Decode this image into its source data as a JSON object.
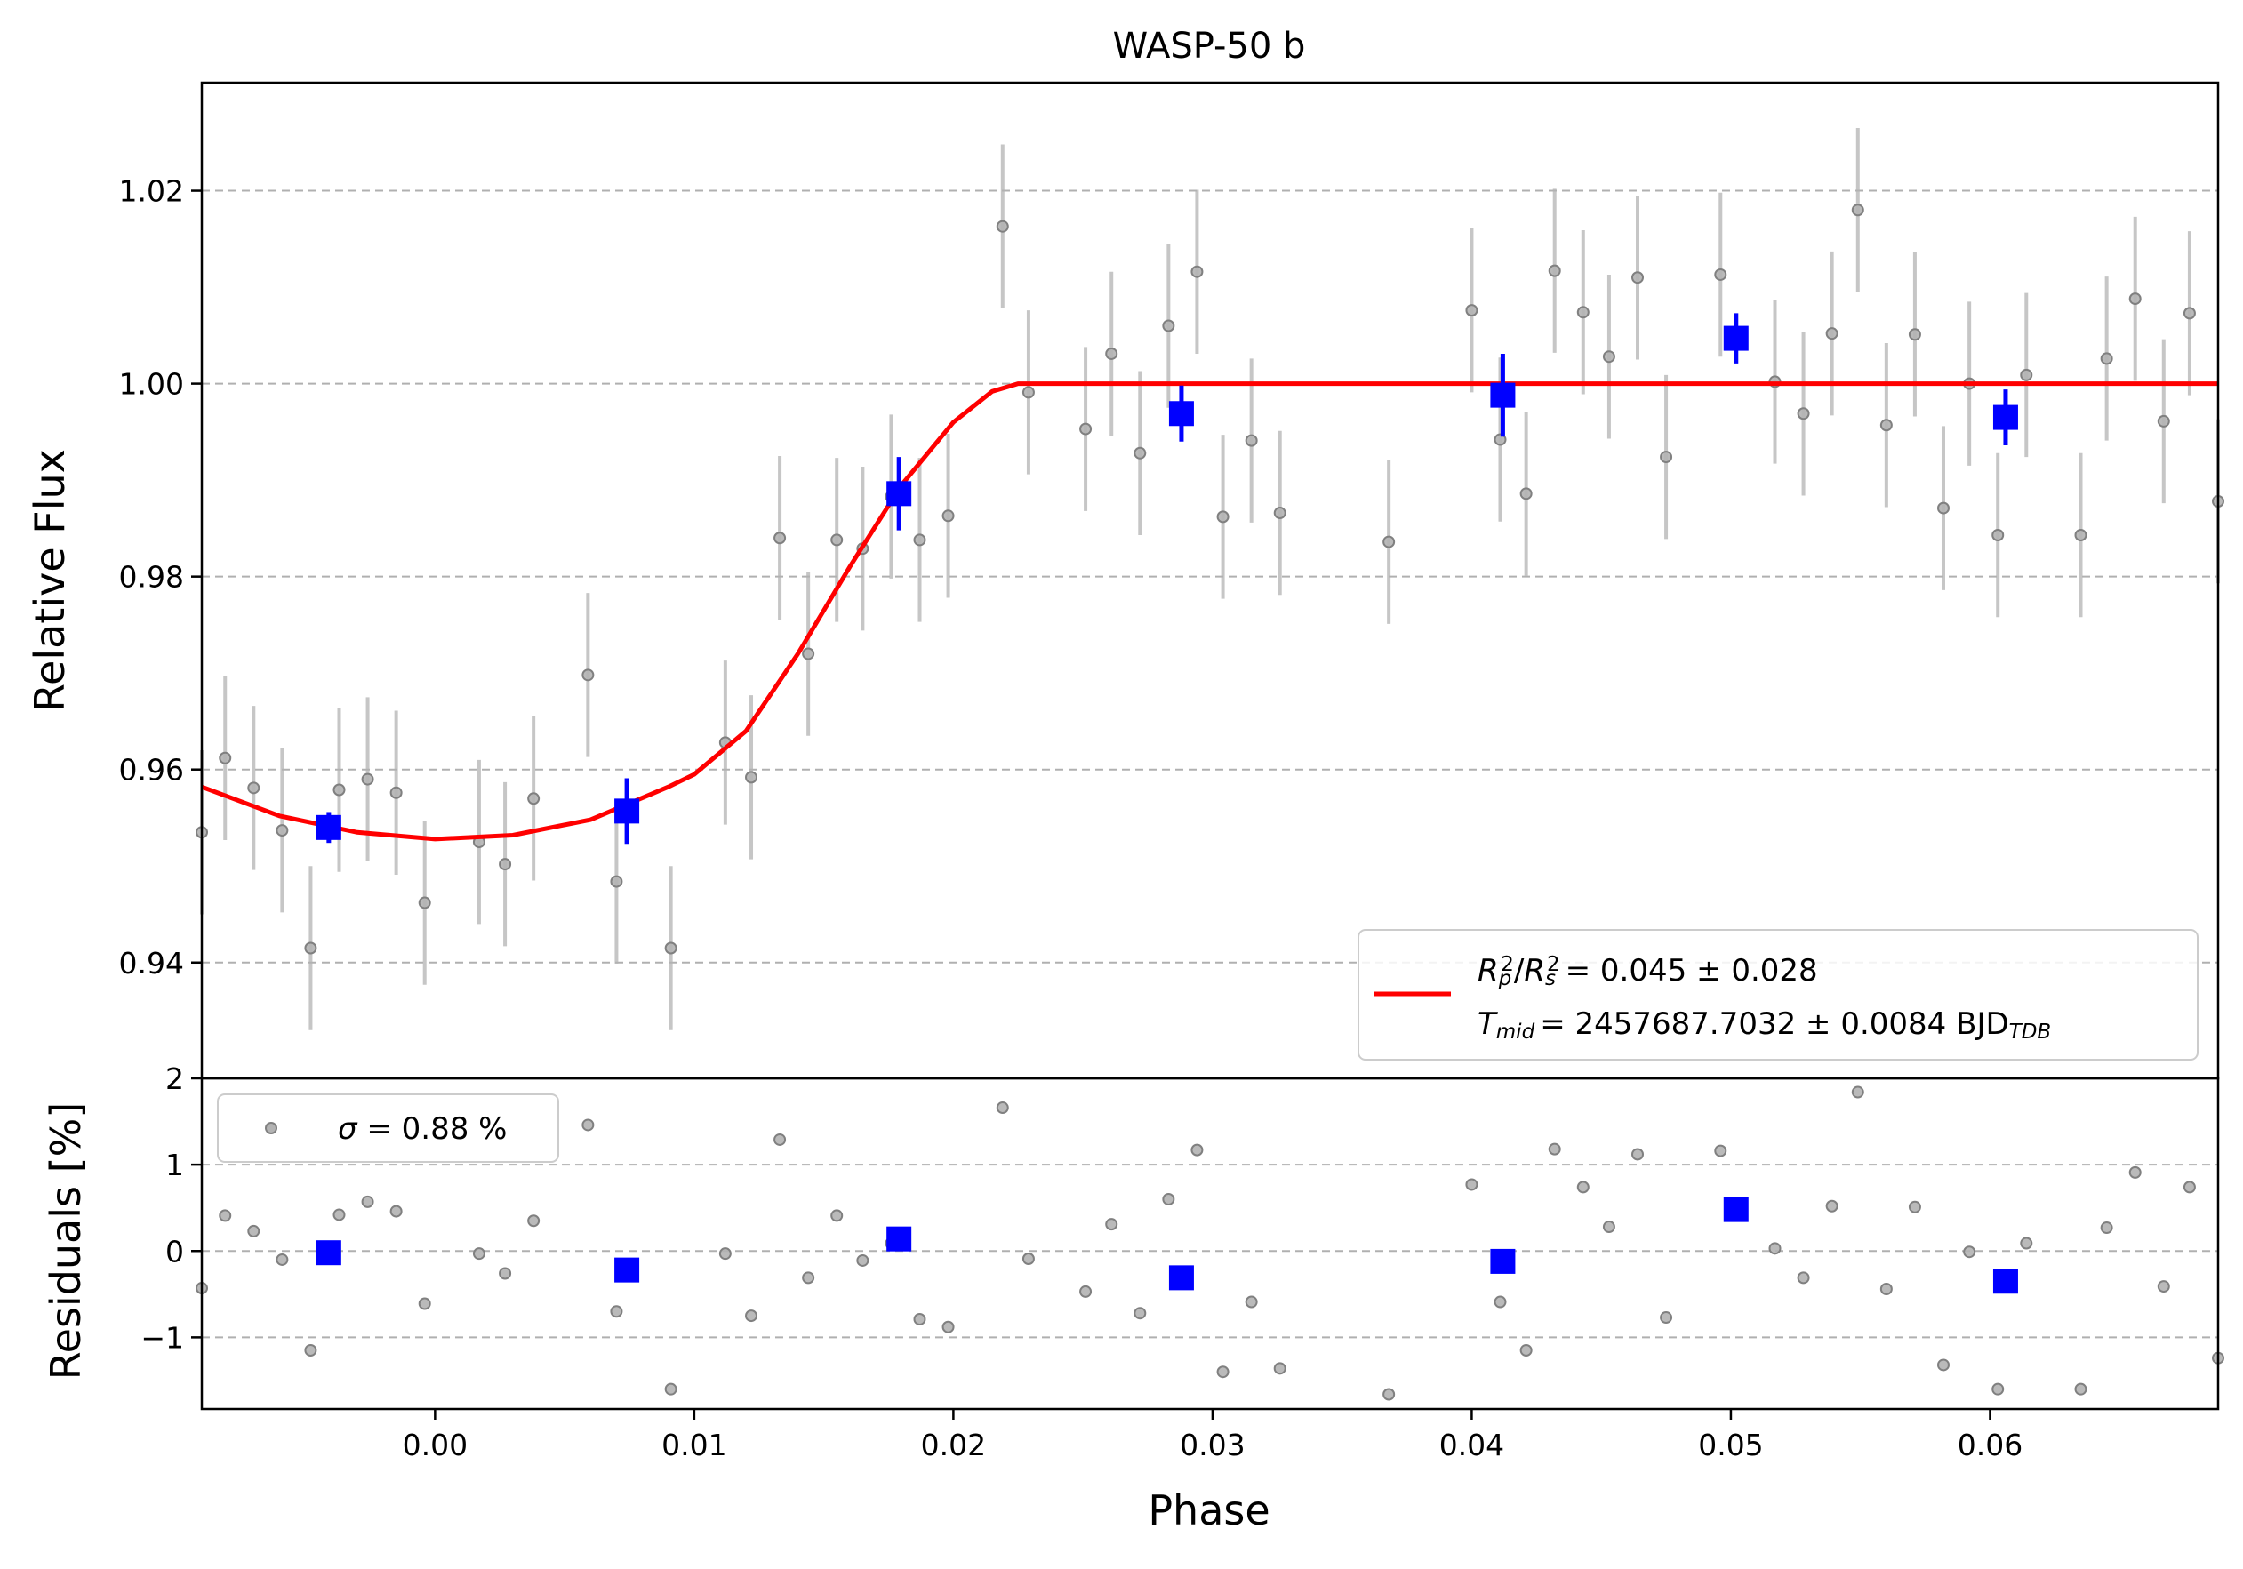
{
  "chart_data": {
    "type": "scatter",
    "title": "WASP-50 b",
    "xlabel": "Phase",
    "x_ticks": [
      "0.00",
      "0.01",
      "0.02",
      "0.03",
      "0.04",
      "0.05",
      "0.06"
    ],
    "xlim": [
      -0.009,
      0.0688
    ],
    "grid": "horizontal dashed",
    "colors": {
      "raw": "#808080",
      "binned": "#0000ff",
      "model": "#ff0000"
    },
    "top_panel": {
      "ylabel": "Relative Flux",
      "y_ticks": [
        "0.94",
        "0.96",
        "0.98",
        "1.00",
        "1.02"
      ],
      "ylim": [
        0.928,
        1.0312
      ],
      "legend": {
        "position": "bottom-right",
        "entries": [
          {
            "series": "model",
            "line1": {
              "lhs": "R²p/R²s",
              "rhs": "= 0.045 ± 0.028"
            },
            "line2": {
              "lhs": "Tmid",
              "rhs": "= 2457687.7032 ± 0.0084 BJD",
              "sub": "TDB"
            }
          }
        ]
      },
      "series": [
        {
          "kind": "raw-data",
          "err": 0.0085,
          "points": [
            [
              -0.009,
              0.9535
            ],
            [
              -0.0081,
              0.9612
            ],
            [
              -0.007,
              0.9581
            ],
            [
              -0.0059,
              0.9537
            ],
            [
              -0.0048,
              0.9415
            ],
            [
              -0.0037,
              0.9579
            ],
            [
              -0.0026,
              0.959
            ],
            [
              -0.0015,
              0.9576
            ],
            [
              -0.0004,
              0.9462
            ],
            [
              0.0017,
              0.9525
            ],
            [
              0.0027,
              0.9502
            ],
            [
              0.0038,
              0.957
            ],
            [
              0.0059,
              0.9698
            ],
            [
              0.007,
              0.9484
            ],
            [
              0.0091,
              0.9415
            ],
            [
              0.0112,
              0.9628
            ],
            [
              0.0122,
              0.9592
            ],
            [
              0.0133,
              0.984
            ],
            [
              0.0144,
              0.972
            ],
            [
              0.0155,
              0.9838
            ],
            [
              0.0165,
              0.9829
            ],
            [
              0.0176,
              0.9883
            ],
            [
              0.0187,
              0.9838
            ],
            [
              0.0198,
              0.9863
            ],
            [
              0.0219,
              1.0163
            ],
            [
              0.0229,
              0.9991
            ],
            [
              0.0251,
              0.9953
            ],
            [
              0.0261,
              1.0031
            ],
            [
              0.0272,
              0.9928
            ],
            [
              0.0283,
              1.006
            ],
            [
              0.0294,
              1.0116
            ],
            [
              0.0304,
              0.9862
            ],
            [
              0.0315,
              0.9941
            ],
            [
              0.0326,
              0.9866
            ],
            [
              0.0368,
              0.9836
            ],
            [
              0.04,
              1.0076
            ],
            [
              0.0411,
              0.9942
            ],
            [
              0.0421,
              0.9886
            ],
            [
              0.0432,
              1.0117
            ],
            [
              0.0443,
              1.0074
            ],
            [
              0.0453,
              1.0028
            ],
            [
              0.0464,
              1.011
            ],
            [
              0.0475,
              0.9924
            ],
            [
              0.0496,
              1.0113
            ],
            [
              0.0517,
              1.0002
            ],
            [
              0.0528,
              0.9969
            ],
            [
              0.0539,
              1.0052
            ],
            [
              0.0549,
              1.018
            ],
            [
              0.056,
              0.9957
            ],
            [
              0.0571,
              1.0051
            ],
            [
              0.0582,
              0.9871
            ],
            [
              0.0592,
              1.0
            ],
            [
              0.0603,
              0.9843
            ],
            [
              0.0614,
              1.0009
            ],
            [
              0.0635,
              0.9843
            ],
            [
              0.0645,
              1.0026
            ],
            [
              0.0656,
              1.0088
            ],
            [
              0.0667,
              0.9961
            ],
            [
              0.0677,
              1.0073
            ],
            [
              0.0688,
              0.9878
            ]
          ]
        },
        {
          "kind": "binned-data",
          "points": [
            [
              -0.0041,
              0.954,
              0.0016
            ],
            [
              0.0074,
              0.9557,
              0.0034
            ],
            [
              0.0179,
              0.9886,
              0.0038
            ],
            [
              0.0288,
              0.9969,
              0.0029
            ],
            [
              0.0412,
              0.9988,
              0.0043
            ],
            [
              0.0502,
              1.0047,
              0.0026
            ],
            [
              0.0606,
              0.9965,
              0.0029
            ]
          ]
        },
        {
          "kind": "model",
          "points": [
            [
              -0.009,
              0.9582
            ],
            [
              -0.006,
              0.9552
            ],
            [
              -0.003,
              0.9535
            ],
            [
              0.0,
              0.9528
            ],
            [
              0.003,
              0.9532
            ],
            [
              0.006,
              0.9548
            ],
            [
              0.009,
              0.9582
            ],
            [
              0.01,
              0.9595
            ],
            [
              0.012,
              0.964
            ],
            [
              0.014,
              0.972
            ],
            [
              0.016,
              0.981
            ],
            [
              0.018,
              0.9895
            ],
            [
              0.02,
              0.996
            ],
            [
              0.0215,
              0.9992
            ],
            [
              0.0225,
              1.0
            ],
            [
              0.0688,
              1.0
            ]
          ]
        }
      ]
    },
    "bottom_panel": {
      "ylabel": "Residuals [%]",
      "y_ticks": [
        "−1",
        "0",
        "1",
        "2"
      ],
      "ylim": [
        -1.83,
        2.0
      ],
      "legend": {
        "position": "top-left",
        "entries": [
          {
            "series": "raw-residuals",
            "symbol": "σ",
            "text": " = 0.88 %"
          }
        ]
      },
      "series": [
        {
          "kind": "raw-residuals",
          "points": [
            [
              -0.009,
              -0.43
            ],
            [
              -0.0081,
              0.41
            ],
            [
              -0.007,
              0.23
            ],
            [
              -0.0059,
              -0.1
            ],
            [
              -0.0048,
              -1.15
            ],
            [
              -0.0037,
              0.42
            ],
            [
              -0.0026,
              0.57
            ],
            [
              -0.0015,
              0.46
            ],
            [
              -0.0004,
              -0.61
            ],
            [
              0.0017,
              -0.03
            ],
            [
              0.0027,
              -0.26
            ],
            [
              0.0038,
              0.35
            ],
            [
              0.0059,
              1.46
            ],
            [
              0.007,
              -0.7
            ],
            [
              0.0091,
              -1.6
            ],
            [
              0.0112,
              -0.03
            ],
            [
              0.0122,
              -0.75
            ],
            [
              0.0133,
              1.29
            ],
            [
              0.0144,
              -0.31
            ],
            [
              0.0155,
              0.41
            ],
            [
              0.0165,
              -0.11
            ],
            [
              0.0176,
              0.09
            ],
            [
              0.0187,
              -0.79
            ],
            [
              0.0198,
              -0.88
            ],
            [
              0.0219,
              1.66
            ],
            [
              0.0229,
              -0.09
            ],
            [
              0.0251,
              -0.47
            ],
            [
              0.0261,
              0.31
            ],
            [
              0.0272,
              -0.72
            ],
            [
              0.0283,
              0.6
            ],
            [
              0.0294,
              1.17
            ],
            [
              0.0304,
              -1.4
            ],
            [
              0.0315,
              -0.59
            ],
            [
              0.0326,
              -1.36
            ],
            [
              0.0368,
              -1.66
            ],
            [
              0.04,
              0.77
            ],
            [
              0.0411,
              -0.59
            ],
            [
              0.0421,
              -1.15
            ],
            [
              0.0432,
              1.18
            ],
            [
              0.0443,
              0.74
            ],
            [
              0.0453,
              0.28
            ],
            [
              0.0464,
              1.12
            ],
            [
              0.0475,
              -0.77
            ],
            [
              0.0496,
              1.16
            ],
            [
              0.0517,
              0.03
            ],
            [
              0.0528,
              -0.31
            ],
            [
              0.0539,
              0.52
            ],
            [
              0.0549,
              1.84
            ],
            [
              0.056,
              -0.44
            ],
            [
              0.0571,
              0.51
            ],
            [
              0.0582,
              -1.32
            ],
            [
              0.0592,
              -0.01
            ],
            [
              0.0603,
              -1.6
            ],
            [
              0.0614,
              0.09
            ],
            [
              0.0635,
              -1.6
            ],
            [
              0.0645,
              0.27
            ],
            [
              0.0656,
              0.91
            ],
            [
              0.0667,
              -0.41
            ],
            [
              0.0677,
              0.74
            ],
            [
              0.0688,
              -1.24
            ]
          ]
        },
        {
          "kind": "binned-residuals",
          "points": [
            [
              -0.0041,
              -0.02
            ],
            [
              0.0074,
              -0.22
            ],
            [
              0.0179,
              0.14
            ],
            [
              0.0288,
              -0.31
            ],
            [
              0.0412,
              -0.12
            ],
            [
              0.0502,
              0.48
            ],
            [
              0.0606,
              -0.35
            ]
          ]
        }
      ]
    }
  }
}
